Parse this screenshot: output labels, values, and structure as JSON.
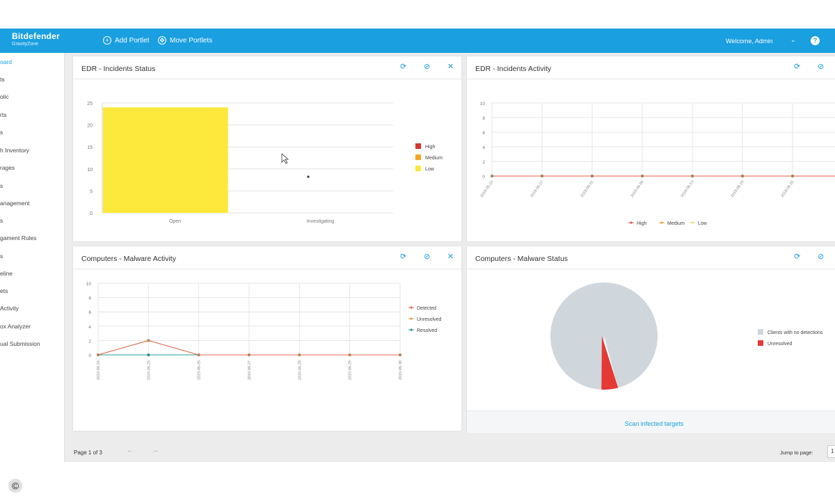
{
  "header": {
    "brand": "Bitdefender",
    "brand_sub": "GravityZone",
    "add_portlet": "Add Portlet",
    "move_portlets": "Move Portlets",
    "welcome": "Welcome, Admin"
  },
  "sidebar": {
    "items": [
      "oard",
      "ts",
      "olic",
      "rts",
      "s",
      "h Inventory",
      "rages",
      "s",
      "anagement",
      "s",
      "gament Rules",
      "s",
      "eline",
      "ets",
      "Activity",
      "ox Analyzer",
      "ual Submission"
    ]
  },
  "panels": {
    "edr_status": {
      "title": "EDR - Incidents Status",
      "chart_data": {
        "type": "bar",
        "categories": [
          "Open",
          "Investigating"
        ],
        "series": [
          {
            "name": "High",
            "values": [
              0,
              0
            ]
          },
          {
            "name": "Medium",
            "values": [
              0,
              0
            ]
          },
          {
            "name": "Low",
            "values": [
              24,
              0
            ]
          }
        ],
        "ylim": [
          0,
          25
        ],
        "yticks": [
          "0",
          "5",
          "10",
          "15",
          "20",
          "25"
        ],
        "legend": [
          "High",
          "Medium",
          "Low"
        ],
        "colors": {
          "High": "#d9342b",
          "Medium": "#f5a623",
          "Low": "#fce93b"
        }
      }
    },
    "edr_activity": {
      "title": "EDR - Incidents Activity",
      "chart_data": {
        "type": "line",
        "x": [
          "2019-05-23",
          "2019-05-27",
          "2019-06-01",
          "2019-06-06",
          "2019-06-13",
          "2019-06-19",
          "2019-06-25",
          ""
        ],
        "series": [
          {
            "name": "High",
            "values": [
              0,
              0,
              0,
              0,
              0,
              0,
              0,
              0
            ]
          },
          {
            "name": "Medium",
            "values": [
              0,
              0,
              0,
              0,
              0,
              0,
              0,
              0
            ]
          },
          {
            "name": "Low",
            "values": [
              0,
              0,
              0,
              0,
              0,
              0,
              0,
              0
            ]
          }
        ],
        "ylim": [
          0,
          10
        ],
        "yticks": [
          "0",
          "2",
          "4",
          "6",
          "8",
          "10"
        ],
        "legend": [
          "High",
          "Medium",
          "Low"
        ]
      }
    },
    "malware_activity": {
      "title": "Computers - Malware Activity",
      "chart_data": {
        "type": "line",
        "x": [
          "2019-06-24",
          "2019-06-25",
          "2019-06-26",
          "2019-06-27",
          "2019-06-28",
          "2019-06-29",
          "2019-06-30"
        ],
        "series": [
          {
            "name": "Detected",
            "values": [
              0,
              2,
              0,
              0,
              0,
              0,
              0
            ]
          },
          {
            "name": "Unresolved",
            "values": [
              0,
              2,
              0,
              0,
              0,
              0,
              0
            ]
          },
          {
            "name": "Resolved",
            "values": [
              0,
              0,
              0,
              0,
              0,
              0,
              0
            ]
          }
        ],
        "ylim": [
          0,
          10
        ],
        "yticks": [
          "0",
          "2",
          "4",
          "6",
          "8",
          "10"
        ],
        "legend": [
          "Detected",
          "Unresolved",
          "Resolved"
        ]
      }
    },
    "malware_status": {
      "title": "Computers - Malware Status",
      "chart_data": {
        "type": "pie",
        "labels": [
          "Clients with no detections",
          "Unresolved"
        ],
        "values": [
          95,
          5
        ],
        "colors": [
          "#cfd6dc",
          "#e53935"
        ]
      },
      "scan_link": "Scan infected targets"
    }
  },
  "pager": {
    "page_text": "Page 1 of 3",
    "jump_label": "Jump to page:",
    "jump_value": "1"
  }
}
